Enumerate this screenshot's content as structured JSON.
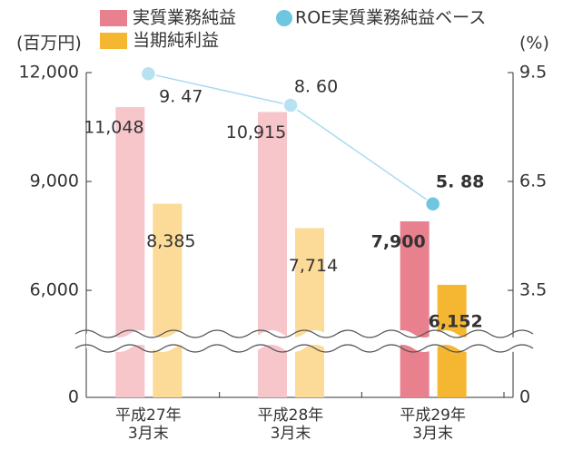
{
  "chart_data": {
    "type": "bar",
    "categories": [
      "平成27年\n3月末",
      "平成28年\n3月末",
      "平成29年\n3月末"
    ],
    "y_label": "(百万円)",
    "y2_label": "(%)",
    "ylim": [
      0,
      12000
    ],
    "yticks": [
      0,
      {
        "value": 6000,
        "label": "6,000"
      },
      {
        "value": 9000,
        "label": "9,000"
      },
      {
        "value": 12000,
        "label": "12,000"
      }
    ],
    "y2lim": [
      0,
      9.5
    ],
    "y2ticks": [
      0,
      3.5,
      6.5,
      9.5
    ],
    "axis_break": true,
    "series": [
      {
        "name": "実質業務純益",
        "type": "bar",
        "color": "#e8808e",
        "colors": [
          "#f6c6cb",
          "#f6c6cb",
          "#e8808e"
        ],
        "values": [
          11048,
          10915,
          7900
        ],
        "value_labels": [
          "11,048",
          "10,915",
          "7,900"
        ]
      },
      {
        "name": "当期純利益",
        "type": "bar",
        "color": "#f5b731",
        "colors": [
          "#fbdb97",
          "#fbdb97",
          "#f5b731"
        ],
        "values": [
          8385,
          7714,
          6152
        ],
        "value_labels": [
          "8,385",
          "7,714",
          "6,152"
        ]
      },
      {
        "name": "ROE実質業務純益ベース",
        "type": "line",
        "axis": "y2",
        "color": "#6ec6e0",
        "colors": [
          "#b8e2f2",
          "#b8e2f2",
          "#6ec6e0"
        ],
        "values": [
          9.47,
          8.6,
          5.88
        ],
        "value_labels": [
          "9. 47",
          "8. 60",
          "5. 88"
        ]
      }
    ]
  }
}
